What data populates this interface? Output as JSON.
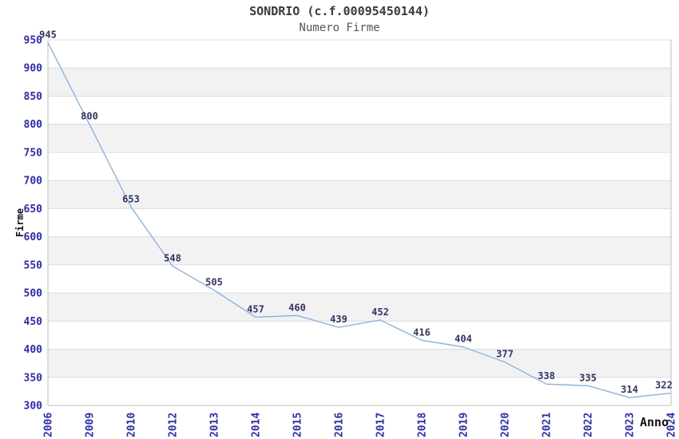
{
  "header": {
    "title": "SONDRIO (c.f.00095450144)",
    "subtitle": "Numero Firme"
  },
  "chart_data": {
    "type": "line",
    "title": "SONDRIO (c.f.00095450144)",
    "subtitle": "Numero Firme",
    "xlabel": "Anno",
    "ylabel": "Firme",
    "categories": [
      "2006",
      "2009",
      "2010",
      "2012",
      "2013",
      "2014",
      "2015",
      "2016",
      "2017",
      "2018",
      "2019",
      "2020",
      "2021",
      "2022",
      "2023",
      "2024"
    ],
    "values": [
      945,
      800,
      653,
      548,
      505,
      457,
      460,
      439,
      452,
      416,
      404,
      377,
      338,
      335,
      314,
      322
    ],
    "data_labels": [
      "945",
      "800",
      "653",
      "548",
      "505",
      "457",
      "460",
      "439",
      "452",
      "416",
      "404",
      "377",
      "338",
      "335",
      "314",
      "322"
    ],
    "ylim": [
      300,
      950
    ],
    "yticks": [
      950,
      900,
      850,
      800,
      750,
      700,
      650,
      600,
      550,
      500,
      450,
      400,
      350,
      300
    ],
    "ytick_interval": 50,
    "grid": true,
    "alternating_bands": true,
    "legend_position": "none",
    "colors": {
      "line": "#7fb0e5",
      "tick_label": "#2a2ac8",
      "data_label": "#333366",
      "band": "#f2f2f2",
      "grid": "#dcdcdc",
      "axis_border": "#bdbdbd",
      "axis_title": "#111111",
      "title": "#3a3a3a",
      "subtitle": "#555555",
      "background": "#ffffff"
    }
  }
}
